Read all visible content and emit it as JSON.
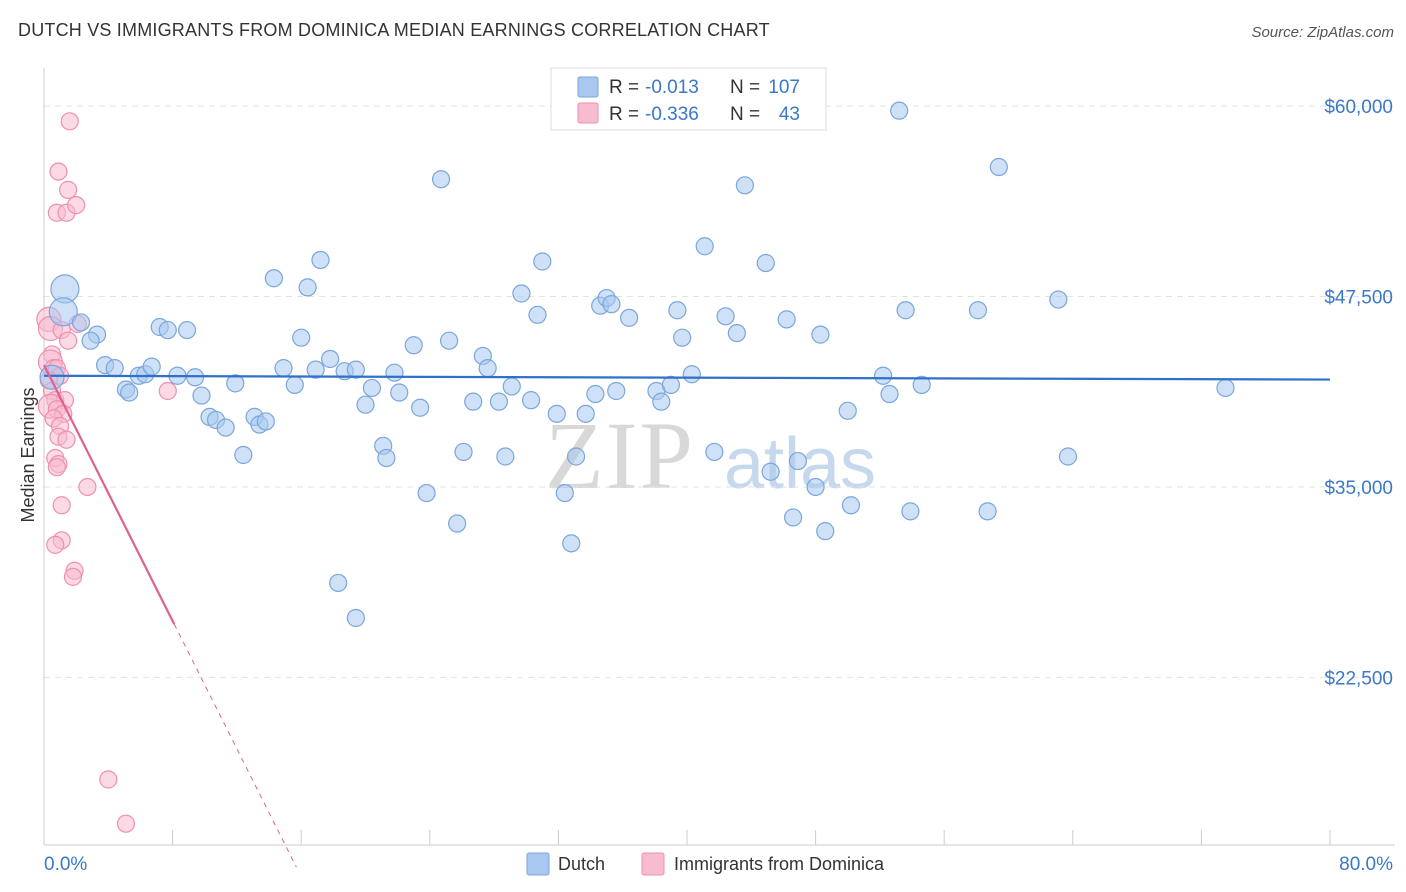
{
  "title": "DUTCH VS IMMIGRANTS FROM DOMINICA MEDIAN EARNINGS CORRELATION CHART",
  "source": "Source: ZipAtlas.com",
  "colors": {
    "dutch_fill": "#a8c8f0",
    "dutch_stroke": "#7aa6dc",
    "dutch_line": "#2f70c8",
    "dom_fill": "#f8bcd0",
    "dom_stroke": "#ef8fb0",
    "dom_line": "#e06090",
    "axis_label": "#3a78c8"
  },
  "legend": {
    "rows": [
      {
        "r_label": "R =",
        "r_value": "-0.013",
        "n_label": "N =",
        "n_value": "107"
      },
      {
        "r_label": "R =",
        "r_value": "-0.336",
        "n_label": "N =",
        "n_value": "43"
      }
    ]
  },
  "watermark": {
    "zip": "ZIP",
    "atlas": "atlas"
  },
  "chart_data": {
    "type": "scatter",
    "xlabel": "",
    "ylabel": "Median Earnings",
    "xlim": [
      0,
      80
    ],
    "ylim": [
      11500,
      62500
    ],
    "x_tick_labels": [
      "0.0%",
      "80.0%"
    ],
    "y_ticks": [
      22500,
      35000,
      47500,
      60000
    ],
    "y_tick_labels": [
      "$22,500",
      "$35,000",
      "$47,500",
      "$60,000"
    ],
    "x_gridlines": [
      8,
      16,
      24,
      32,
      40,
      48,
      56,
      64,
      72,
      80
    ],
    "series": [
      {
        "name": "Dutch",
        "trend": {
          "x": [
            0,
            80
          ],
          "y": [
            42300,
            42050
          ],
          "dashed_to_x": null
        },
        "points": [
          {
            "x": 1.3,
            "y": 48000,
            "s": "xl"
          },
          {
            "x": 1.2,
            "y": 46500,
            "s": "xl"
          },
          {
            "x": 0.5,
            "y": 42200,
            "s": "l"
          },
          {
            "x": 2.3,
            "y": 45800
          },
          {
            "x": 3.3,
            "y": 45000
          },
          {
            "x": 2.9,
            "y": 44600
          },
          {
            "x": 3.8,
            "y": 43000
          },
          {
            "x": 4.4,
            "y": 42800
          },
          {
            "x": 5.1,
            "y": 41400
          },
          {
            "x": 5.3,
            "y": 41200
          },
          {
            "x": 5.9,
            "y": 42300
          },
          {
            "x": 6.3,
            "y": 42400
          },
          {
            "x": 6.7,
            "y": 42900
          },
          {
            "x": 7.2,
            "y": 45500
          },
          {
            "x": 7.7,
            "y": 45300
          },
          {
            "x": 8.3,
            "y": 42300
          },
          {
            "x": 8.9,
            "y": 45300
          },
          {
            "x": 9.4,
            "y": 42200
          },
          {
            "x": 9.8,
            "y": 41000
          },
          {
            "x": 10.3,
            "y": 39600
          },
          {
            "x": 10.7,
            "y": 39400
          },
          {
            "x": 11.3,
            "y": 38900
          },
          {
            "x": 11.9,
            "y": 41800
          },
          {
            "x": 12.4,
            "y": 37100
          },
          {
            "x": 13.1,
            "y": 39600
          },
          {
            "x": 13.4,
            "y": 39100
          },
          {
            "x": 13.8,
            "y": 39300
          },
          {
            "x": 14.3,
            "y": 48700
          },
          {
            "x": 14.9,
            "y": 42800
          },
          {
            "x": 15.6,
            "y": 41700
          },
          {
            "x": 16.0,
            "y": 44800
          },
          {
            "x": 16.4,
            "y": 48100
          },
          {
            "x": 16.9,
            "y": 42700
          },
          {
            "x": 17.2,
            "y": 49900
          },
          {
            "x": 17.8,
            "y": 43400
          },
          {
            "x": 18.3,
            "y": 28700
          },
          {
            "x": 18.7,
            "y": 42600
          },
          {
            "x": 19.4,
            "y": 42700
          },
          {
            "x": 19.4,
            "y": 26400
          },
          {
            "x": 20.0,
            "y": 40400
          },
          {
            "x": 20.4,
            "y": 41500
          },
          {
            "x": 21.1,
            "y": 37700
          },
          {
            "x": 21.3,
            "y": 36900
          },
          {
            "x": 21.8,
            "y": 42500
          },
          {
            "x": 22.1,
            "y": 41200
          },
          {
            "x": 23.0,
            "y": 44300
          },
          {
            "x": 23.4,
            "y": 40200
          },
          {
            "x": 23.8,
            "y": 34600
          },
          {
            "x": 24.7,
            "y": 55200
          },
          {
            "x": 25.2,
            "y": 44600
          },
          {
            "x": 25.7,
            "y": 32600
          },
          {
            "x": 26.1,
            "y": 37300
          },
          {
            "x": 26.7,
            "y": 40600
          },
          {
            "x": 27.3,
            "y": 43600
          },
          {
            "x": 27.6,
            "y": 42800
          },
          {
            "x": 28.3,
            "y": 40600
          },
          {
            "x": 28.7,
            "y": 37000
          },
          {
            "x": 29.1,
            "y": 41600
          },
          {
            "x": 29.7,
            "y": 47700
          },
          {
            "x": 30.3,
            "y": 40700
          },
          {
            "x": 30.7,
            "y": 46300
          },
          {
            "x": 31.0,
            "y": 49800
          },
          {
            "x": 31.9,
            "y": 39800
          },
          {
            "x": 32.4,
            "y": 34600
          },
          {
            "x": 32.8,
            "y": 31300
          },
          {
            "x": 33.1,
            "y": 37000
          },
          {
            "x": 33.7,
            "y": 39800
          },
          {
            "x": 34.3,
            "y": 41100
          },
          {
            "x": 34.6,
            "y": 46900
          },
          {
            "x": 35.0,
            "y": 47400
          },
          {
            "x": 35.3,
            "y": 47000
          },
          {
            "x": 35.6,
            "y": 41300
          },
          {
            "x": 36.4,
            "y": 46100
          },
          {
            "x": 38.1,
            "y": 41300
          },
          {
            "x": 38.4,
            "y": 40600
          },
          {
            "x": 39.0,
            "y": 41700
          },
          {
            "x": 39.4,
            "y": 46600
          },
          {
            "x": 39.7,
            "y": 44800
          },
          {
            "x": 40.3,
            "y": 42400
          },
          {
            "x": 41.1,
            "y": 50800
          },
          {
            "x": 41.7,
            "y": 37300
          },
          {
            "x": 42.4,
            "y": 46200
          },
          {
            "x": 43.1,
            "y": 45100
          },
          {
            "x": 43.6,
            "y": 54800
          },
          {
            "x": 44.9,
            "y": 49700
          },
          {
            "x": 45.2,
            "y": 36000
          },
          {
            "x": 46.2,
            "y": 46000
          },
          {
            "x": 46.6,
            "y": 33000
          },
          {
            "x": 46.9,
            "y": 36700
          },
          {
            "x": 48.0,
            "y": 35000
          },
          {
            "x": 48.3,
            "y": 45000
          },
          {
            "x": 48.6,
            "y": 32100
          },
          {
            "x": 50.0,
            "y": 40000
          },
          {
            "x": 50.2,
            "y": 33800
          },
          {
            "x": 52.2,
            "y": 42300
          },
          {
            "x": 52.6,
            "y": 41100
          },
          {
            "x": 53.2,
            "y": 59700
          },
          {
            "x": 53.6,
            "y": 46600
          },
          {
            "x": 53.9,
            "y": 33400
          },
          {
            "x": 54.6,
            "y": 41700
          },
          {
            "x": 58.1,
            "y": 46600
          },
          {
            "x": 58.7,
            "y": 33400
          },
          {
            "x": 59.4,
            "y": 56000
          },
          {
            "x": 63.1,
            "y": 47300
          },
          {
            "x": 63.7,
            "y": 37000
          },
          {
            "x": 73.5,
            "y": 41500
          }
        ]
      },
      {
        "name": "Immigrants from Dominica",
        "trend": {
          "x": [
            0,
            8.1
          ],
          "y": [
            43000,
            26000
          ],
          "dashed_to_x": 15.7
        },
        "points": [
          {
            "x": 1.6,
            "y": 59000
          },
          {
            "x": 0.9,
            "y": 55700
          },
          {
            "x": 1.5,
            "y": 54500
          },
          {
            "x": 0.8,
            "y": 53000
          },
          {
            "x": 1.4,
            "y": 53000
          },
          {
            "x": 2.0,
            "y": 53500
          },
          {
            "x": 0.3,
            "y": 46000,
            "s": "l"
          },
          {
            "x": 0.4,
            "y": 45400,
            "s": "l"
          },
          {
            "x": 2.1,
            "y": 45700
          },
          {
            "x": 1.1,
            "y": 45300
          },
          {
            "x": 1.5,
            "y": 44600
          },
          {
            "x": 0.5,
            "y": 43700
          },
          {
            "x": 0.4,
            "y": 43200,
            "s": "l"
          },
          {
            "x": 0.6,
            "y": 42800
          },
          {
            "x": 0.8,
            "y": 42800
          },
          {
            "x": 1.0,
            "y": 42300
          },
          {
            "x": 0.3,
            "y": 42000
          },
          {
            "x": 0.5,
            "y": 41300
          },
          {
            "x": 0.7,
            "y": 40700
          },
          {
            "x": 1.3,
            "y": 40700
          },
          {
            "x": 0.4,
            "y": 40300,
            "s": "l"
          },
          {
            "x": 0.8,
            "y": 40100
          },
          {
            "x": 1.2,
            "y": 39800
          },
          {
            "x": 0.6,
            "y": 39500
          },
          {
            "x": 1.0,
            "y": 39000
          },
          {
            "x": 0.9,
            "y": 38300
          },
          {
            "x": 1.4,
            "y": 38100
          },
          {
            "x": 0.7,
            "y": 36900
          },
          {
            "x": 0.9,
            "y": 36500
          },
          {
            "x": 0.8,
            "y": 36300
          },
          {
            "x": 2.7,
            "y": 35000
          },
          {
            "x": 1.1,
            "y": 33800
          },
          {
            "x": 1.1,
            "y": 31500
          },
          {
            "x": 0.7,
            "y": 31200
          },
          {
            "x": 1.9,
            "y": 29500
          },
          {
            "x": 1.8,
            "y": 29100
          },
          {
            "x": 7.7,
            "y": 41300
          },
          {
            "x": 4.0,
            "y": 15800
          },
          {
            "x": 5.1,
            "y": 12900
          }
        ]
      }
    ]
  }
}
